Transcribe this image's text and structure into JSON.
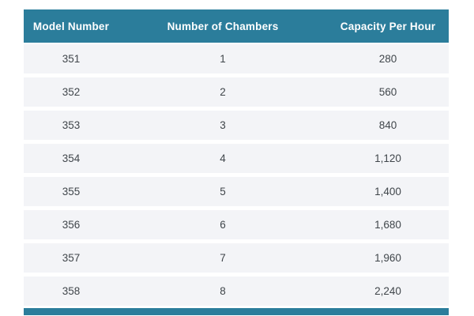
{
  "colors": {
    "accent": "#2b7d9b",
    "row_bg": "#f3f4f7",
    "text": "#40464b",
    "header_text": "#ffffff"
  },
  "chart_data": {
    "type": "table",
    "columns": [
      "Model Number",
      "Number of Chambers",
      "Capacity Per Hour"
    ],
    "rows": [
      [
        "351",
        "1",
        "280"
      ],
      [
        "352",
        "2",
        "560"
      ],
      [
        "353",
        "3",
        "840"
      ],
      [
        "354",
        "4",
        "1,120"
      ],
      [
        "355",
        "5",
        "1,400"
      ],
      [
        "356",
        "6",
        "1,680"
      ],
      [
        "357",
        "7",
        "1,960"
      ],
      [
        "358",
        "8",
        "2,240"
      ]
    ]
  }
}
